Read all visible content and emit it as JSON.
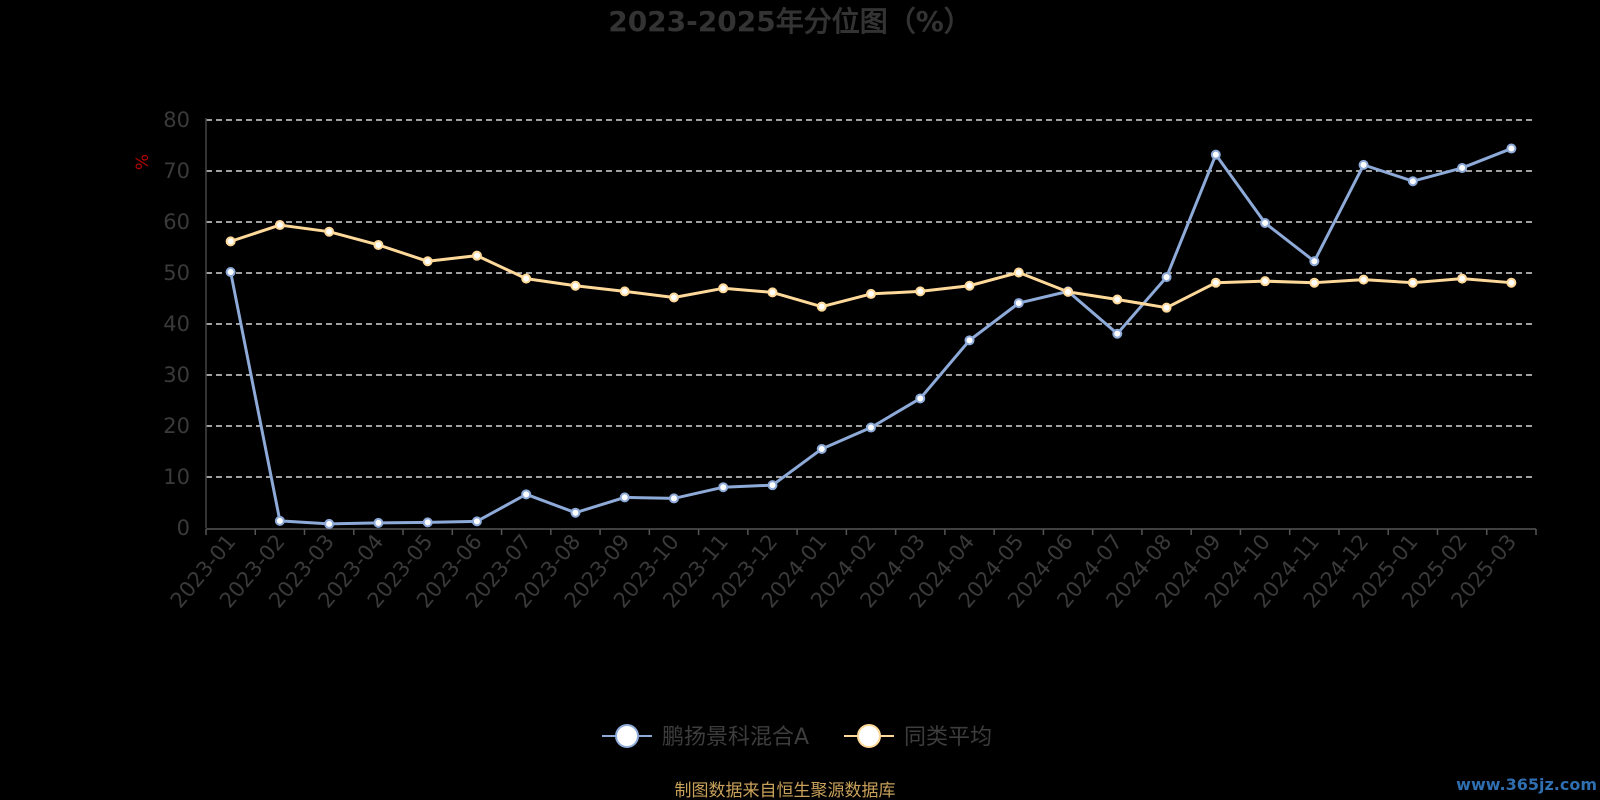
{
  "chart_data": {
    "type": "line",
    "title": "2023-2025年分位图（%）",
    "ylabel": "%",
    "ylim": [
      0,
      80
    ],
    "yticks": [
      "0",
      "10",
      "20",
      "30",
      "40",
      "50",
      "60",
      "70",
      "80"
    ],
    "grid": true,
    "legend_position": "bottom-center",
    "categories": [
      "2023-01",
      "2023-02",
      "2023-03",
      "2023-04",
      "2023-05",
      "2023-06",
      "2023-07",
      "2023-08",
      "2023-09",
      "2023-10",
      "2023-11",
      "2023-12",
      "2024-01",
      "2024-02",
      "2024-03",
      "2024-04",
      "2024-05",
      "2024-06",
      "2024-07",
      "2024-08",
      "2024-09",
      "2024-10",
      "2024-11",
      "2024-12",
      "2025-01",
      "2025-02",
      "2025-03"
    ],
    "series": [
      {
        "name": "鹏扬景科混合A",
        "color": "#8eaad8",
        "values": [
          50.2,
          1.4,
          0.8,
          1.0,
          1.1,
          1.3,
          6.6,
          3.0,
          6.0,
          5.8,
          8.0,
          8.4,
          15.5,
          19.7,
          25.4,
          36.8,
          44.1,
          46.4,
          38.1,
          49.2,
          73.2,
          59.8,
          52.3,
          71.2,
          68.0,
          70.6,
          74.4
        ]
      },
      {
        "name": "同类平均",
        "color": "#ffd99a",
        "values": [
          56.2,
          59.4,
          58.1,
          55.5,
          52.3,
          53.4,
          48.9,
          47.5,
          46.4,
          45.2,
          47.0,
          46.2,
          43.4,
          45.9,
          46.4,
          47.5,
          50.1,
          46.3,
          44.8,
          43.2,
          48.1,
          48.4,
          48.1,
          48.7,
          48.1,
          48.9,
          48.1
        ]
      }
    ]
  },
  "footer": {
    "source": "制图数据来自恒生聚源数据库",
    "watermark": "www.365jz.com"
  }
}
